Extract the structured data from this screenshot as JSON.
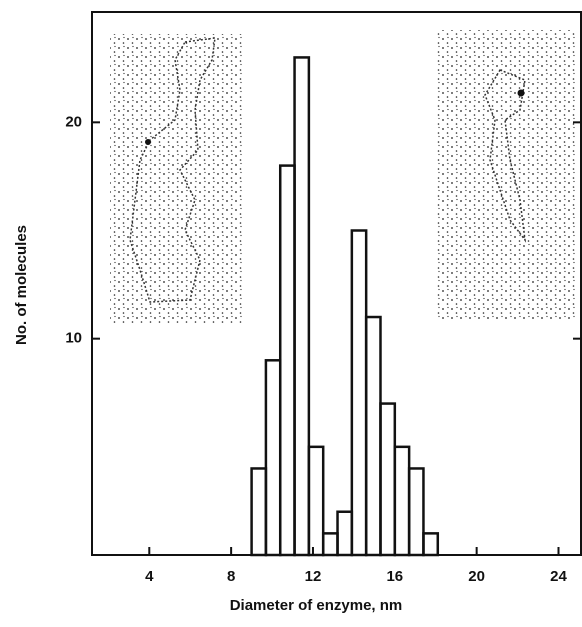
{
  "chart_data": {
    "type": "histogram",
    "x_label": "Diameter of enzyme, nm",
    "y_label": "No. of molecules",
    "bins": [
      9,
      9.7,
      10.4,
      11.1,
      11.8,
      12.5,
      13.2,
      13.9,
      14.6,
      15.3,
      16,
      16.7,
      17.4,
      18.1
    ],
    "values": [
      4,
      9,
      18,
      23,
      5,
      1,
      2,
      15,
      11,
      7,
      5,
      4,
      1
    ],
    "color": "#111111",
    "xlim": [
      1.2,
      25.1
    ],
    "ylim": [
      0,
      25.1
    ],
    "xticks": [
      4,
      8,
      12,
      16,
      20,
      24
    ],
    "yticks": [
      10,
      20
    ]
  }
}
